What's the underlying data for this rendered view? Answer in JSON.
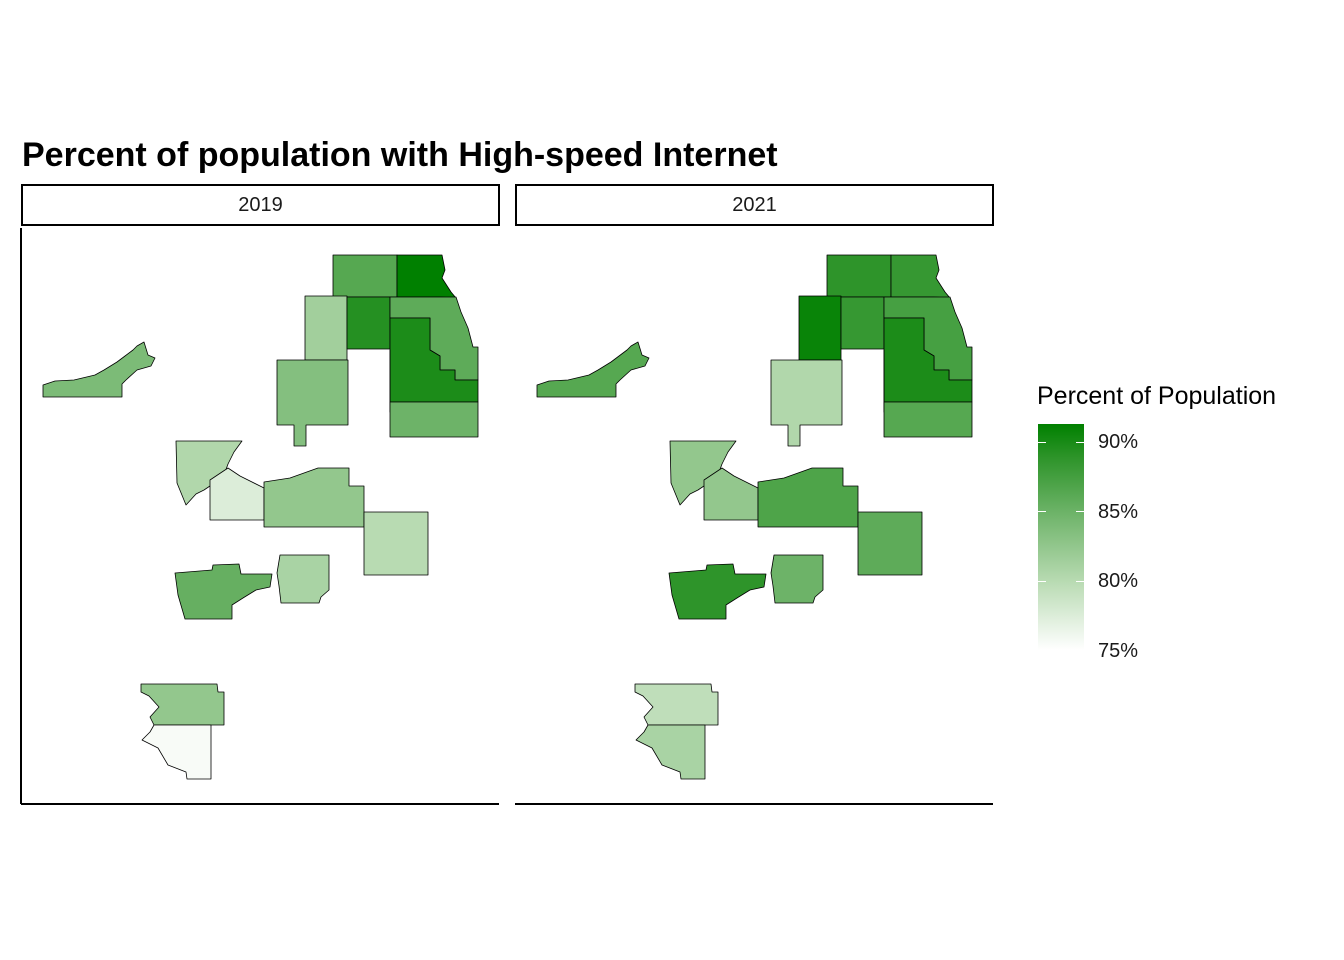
{
  "title": "Percent of population with High-speed Internet",
  "panels": [
    {
      "label": "2019"
    },
    {
      "label": "2021"
    }
  ],
  "legend": {
    "title": "Percent of Population",
    "ticks": [
      "90%",
      "85%",
      "80%",
      "75%"
    ],
    "scale_min": 75,
    "scale_max": 91.5,
    "colors": {
      "low": "#ffffff",
      "high": "#008000"
    }
  },
  "regions": [
    {
      "id": "r01",
      "v2019": 86.5,
      "v2021": 89.0
    },
    {
      "id": "r02",
      "v2019": 91.5,
      "v2021": 88.5
    },
    {
      "id": "r03",
      "v2019": 81.5,
      "v2021": 91.0
    },
    {
      "id": "r04",
      "v2019": 89.5,
      "v2021": 88.5
    },
    {
      "id": "r05",
      "v2019": 86.0,
      "v2021": 87.5
    },
    {
      "id": "r06",
      "v2019": 90.0,
      "v2021": 90.0
    },
    {
      "id": "r07",
      "v2019": 85.0,
      "v2021": 86.5
    },
    {
      "id": "r08",
      "v2019": 89.0,
      "v2021": 88.0
    },
    {
      "id": "r09",
      "v2019": 83.5,
      "v2021": 80.5
    },
    {
      "id": "r10",
      "v2019": 80.5,
      "v2021": 82.5
    },
    {
      "id": "r11",
      "v2019": 77.5,
      "v2021": 82.5
    },
    {
      "id": "r12",
      "v2019": 82.5,
      "v2021": 87.0
    },
    {
      "id": "r13",
      "v2019": 80.0,
      "v2021": 86.0
    },
    {
      "id": "r14",
      "v2019": 85.5,
      "v2021": 89.0
    },
    {
      "id": "r15",
      "v2019": 81.0,
      "v2021": 85.0
    },
    {
      "id": "r16",
      "v2019": 82.5,
      "v2021": 79.5
    },
    {
      "id": "r17",
      "v2019": 75.5,
      "v2021": 81.0
    },
    {
      "id": "r18",
      "v2019": 84.0,
      "v2021": 86.5
    },
    {
      "id": "r19",
      "v2019": 79.0,
      "v2021": 84.0
    }
  ]
}
